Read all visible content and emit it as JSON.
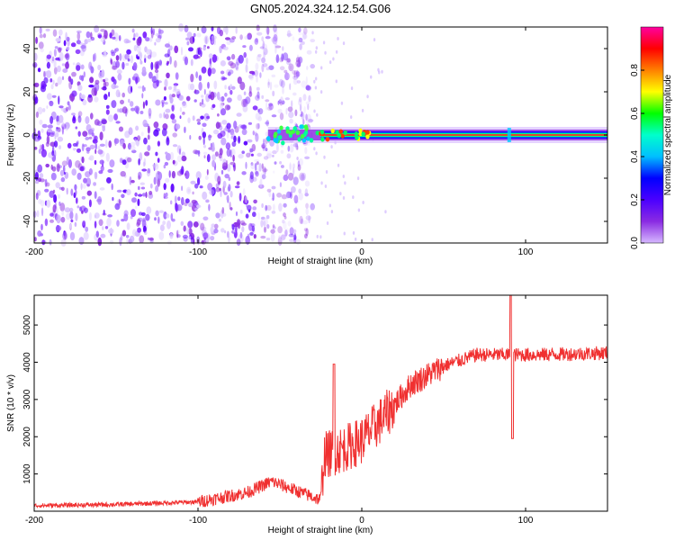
{
  "title": "GN05.2024.324.12.54.G06",
  "chart_data": [
    {
      "type": "heatmap",
      "xlabel": "Height of straight line (km)",
      "ylabel": "Frequency (Hz)",
      "xlim": [
        -200,
        150
      ],
      "ylim": [
        -50,
        50
      ],
      "xticks": [
        -200,
        -100,
        0,
        100
      ],
      "yticks": [
        -40,
        -20,
        0,
        20,
        40
      ],
      "colorbar": {
        "label": "Normalized spectral amplitude",
        "range": [
          0,
          1
        ],
        "ticks": [
          0.0,
          0.2,
          0.4,
          0.6,
          0.8
        ],
        "colors": [
          "#d6b8ff",
          "#8a2be2",
          "#4b00ff",
          "#0000ff",
          "#00bfff",
          "#00ffcc",
          "#00ff00",
          "#ffff00",
          "#ff8000",
          "#ff0000",
          "#ff00a0"
        ]
      },
      "noise_region_x": [
        -200,
        -30
      ],
      "line_frequency_hz": 0,
      "line_start_km": -60,
      "spike_x_km": 90
    },
    {
      "type": "line",
      "xlabel": "Height of straight line (km)",
      "ylabel": "SNR (10 * v/v)",
      "xlim": [
        -200,
        150
      ],
      "ylim": [
        0,
        5800
      ],
      "xticks": [
        -200,
        -100,
        0,
        100
      ],
      "yticks": [
        1000,
        2000,
        3000,
        4000,
        5000
      ],
      "color": "#f03030",
      "trend": [
        {
          "x": -200,
          "y": 150
        },
        {
          "x": -150,
          "y": 180
        },
        {
          "x": -100,
          "y": 250
        },
        {
          "x": -70,
          "y": 500
        },
        {
          "x": -55,
          "y": 800
        },
        {
          "x": -25,
          "y": 300
        },
        {
          "x": -23,
          "y": 1500
        },
        {
          "x": -10,
          "y": 1700
        },
        {
          "x": 0,
          "y": 1900
        },
        {
          "x": 15,
          "y": 2600
        },
        {
          "x": 30,
          "y": 3400
        },
        {
          "x": 50,
          "y": 3900
        },
        {
          "x": 70,
          "y": 4200
        },
        {
          "x": 90,
          "y": 4200
        },
        {
          "x": 110,
          "y": 4200
        },
        {
          "x": 150,
          "y": 4250
        }
      ],
      "events": [
        {
          "x": -17,
          "y": 3950
        },
        {
          "x": 91,
          "y": 5800
        },
        {
          "x": 92,
          "y": 1950
        }
      ]
    }
  ]
}
